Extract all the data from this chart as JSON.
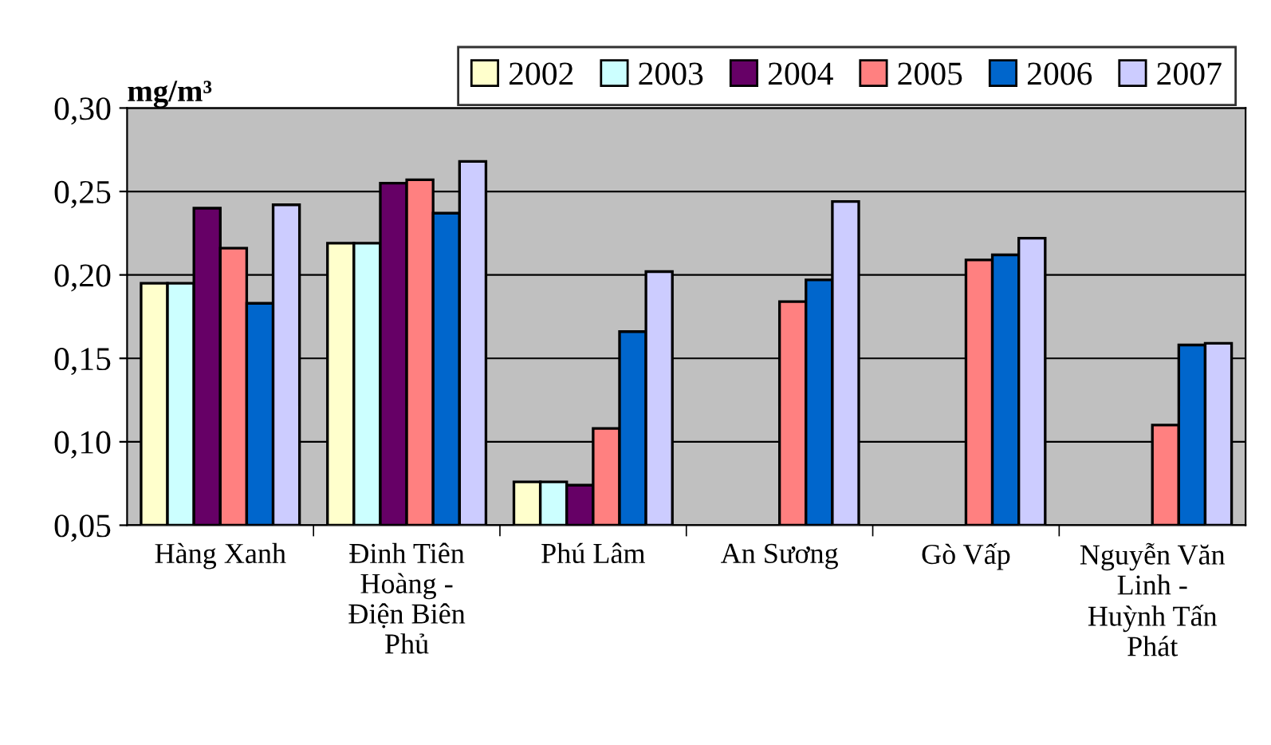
{
  "chart_data": {
    "type": "bar",
    "ylabel": "mg/m³",
    "categories": [
      "Hàng Xanh",
      "Đinh Tiên\nHoàng -\nĐiện Biên\nPhủ",
      "Phú Lâm",
      "An Sương",
      "Gò Vấp",
      "Nguyễn Văn\nLinh -\nHuỳnh Tấn\nPhát"
    ],
    "series": [
      {
        "name": "2002",
        "color": "#ffffcc",
        "values": [
          0.195,
          0.219,
          0.076,
          null,
          null,
          null
        ]
      },
      {
        "name": "2003",
        "color": "#ccffff",
        "values": [
          0.195,
          0.219,
          0.076,
          null,
          null,
          null
        ]
      },
      {
        "name": "2004",
        "color": "#660066",
        "values": [
          0.24,
          0.255,
          0.074,
          null,
          null,
          null
        ]
      },
      {
        "name": "2005",
        "color": "#ff8080",
        "values": [
          0.216,
          0.257,
          0.108,
          0.184,
          0.209,
          0.11
        ]
      },
      {
        "name": "2006",
        "color": "#0066cc",
        "values": [
          0.183,
          0.237,
          0.166,
          0.197,
          0.212,
          0.158
        ]
      },
      {
        "name": "2007",
        "color": "#ccccff",
        "values": [
          0.242,
          0.268,
          0.202,
          0.244,
          0.222,
          0.159
        ]
      }
    ],
    "ylim": [
      0.05,
      0.3
    ],
    "yticks": [
      {
        "value": 0.05,
        "label": "0,05"
      },
      {
        "value": 0.1,
        "label": "0,10"
      },
      {
        "value": 0.15,
        "label": "0,15"
      },
      {
        "value": 0.2,
        "label": "0,20"
      },
      {
        "value": 0.25,
        "label": "0,25"
      },
      {
        "value": 0.3,
        "label": "0,30"
      }
    ],
    "grid": "y",
    "legend": "top right"
  }
}
